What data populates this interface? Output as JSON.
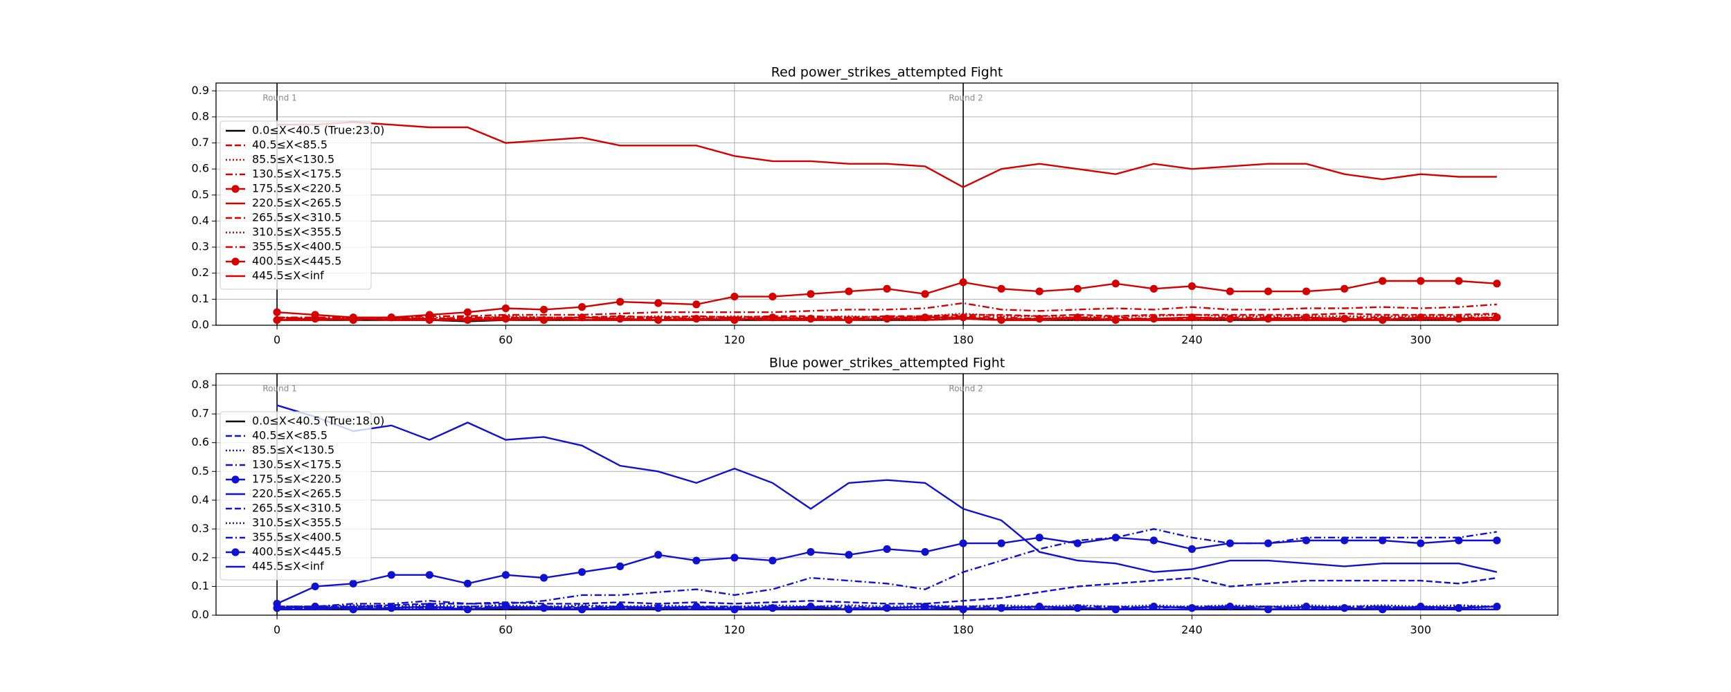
{
  "chart_data": [
    {
      "type": "line",
      "title": "Red power_strikes_attempted Fight",
      "x": [
        0,
        10,
        20,
        30,
        40,
        50,
        60,
        70,
        80,
        90,
        100,
        110,
        120,
        130,
        140,
        150,
        160,
        170,
        180,
        190,
        200,
        210,
        220,
        230,
        240,
        250,
        260,
        270,
        280,
        290,
        300,
        310,
        320
      ],
      "xlim": [
        -16,
        336
      ],
      "xticks": [
        0,
        60,
        120,
        180,
        240,
        300
      ],
      "ylim": [
        0,
        0.93
      ],
      "yticks": [
        {
          "value": 0,
          "label": "0.0"
        },
        0.1,
        0.2,
        0.3,
        0.4,
        0.5,
        0.6,
        0.7,
        0.8,
        0.9
      ],
      "grid": true,
      "legend": "upper left",
      "vlines": [
        {
          "x": 0,
          "label": "Round 1"
        },
        {
          "x": 180,
          "label": "Round 2"
        }
      ],
      "series": [
        {
          "name": "0.0≤X<40.5 (True:23.0)",
          "color": "#000000",
          "linestyle": "solid",
          "marker": false,
          "values": [
            0.02,
            0.02,
            0.02,
            0.02,
            0.02,
            0.015,
            0.02,
            0.02,
            0.02,
            0.02,
            0.02,
            0.02,
            0.02,
            0.02,
            0.02,
            0.02,
            0.02,
            0.02,
            0.025,
            0.02,
            0.02,
            0.02,
            0.02,
            0.02,
            0.02,
            0.02,
            0.02,
            0.02,
            0.02,
            0.02,
            0.02,
            0.02,
            0.02
          ]
        },
        {
          "name": "40.5≤X<85.5",
          "color": "#d40000",
          "linestyle": "dashed",
          "marker": false,
          "values": [
            0.025,
            0.02,
            0.025,
            0.025,
            0.02,
            0.025,
            0.025,
            0.025,
            0.02,
            0.025,
            0.025,
            0.025,
            0.025,
            0.02,
            0.025,
            0.025,
            0.025,
            0.025,
            0.03,
            0.025,
            0.025,
            0.025,
            0.025,
            0.025,
            0.025,
            0.025,
            0.025,
            0.025,
            0.025,
            0.025,
            0.025,
            0.025,
            0.025
          ]
        },
        {
          "name": "85.5≤X<130.5",
          "color": "#d40000",
          "linestyle": "dotted",
          "marker": false,
          "values": [
            0.02,
            0.02,
            0.025,
            0.02,
            0.02,
            0.02,
            0.025,
            0.02,
            0.02,
            0.025,
            0.02,
            0.02,
            0.025,
            0.02,
            0.02,
            0.025,
            0.02,
            0.02,
            0.03,
            0.02,
            0.025,
            0.02,
            0.02,
            0.025,
            0.02,
            0.02,
            0.025,
            0.02,
            0.02,
            0.025,
            0.02,
            0.02,
            0.025
          ]
        },
        {
          "name": "130.5≤X<175.5",
          "color": "#d40000",
          "linestyle": "dashdot",
          "marker": false,
          "values": [
            0.03,
            0.025,
            0.025,
            0.03,
            0.025,
            0.025,
            0.03,
            0.025,
            0.03,
            0.025,
            0.03,
            0.025,
            0.03,
            0.025,
            0.03,
            0.025,
            0.03,
            0.03,
            0.035,
            0.03,
            0.025,
            0.03,
            0.03,
            0.025,
            0.03,
            0.03,
            0.03,
            0.025,
            0.03,
            0.03,
            0.03,
            0.03,
            0.03
          ]
        },
        {
          "name": "175.5≤X<220.5",
          "color": "#d40000",
          "linestyle": "solid",
          "marker": true,
          "values": [
            0.02,
            0.025,
            0.02,
            0.03,
            0.02,
            0.02,
            0.025,
            0.02,
            0.03,
            0.025,
            0.02,
            0.025,
            0.02,
            0.03,
            0.025,
            0.02,
            0.025,
            0.03,
            0.03,
            0.02,
            0.025,
            0.03,
            0.02,
            0.025,
            0.03,
            0.025,
            0.025,
            0.03,
            0.025,
            0.02,
            0.03,
            0.025,
            0.03
          ]
        },
        {
          "name": "220.5≤X<265.5",
          "color": "#d40000",
          "linestyle": "solid",
          "marker": false,
          "values": [
            0.02,
            0.02,
            0.025,
            0.02,
            0.02,
            0.02,
            0.02,
            0.025,
            0.02,
            0.02,
            0.02,
            0.02,
            0.025,
            0.02,
            0.02,
            0.02,
            0.025,
            0.02,
            0.025,
            0.02,
            0.02,
            0.025,
            0.02,
            0.02,
            0.02,
            0.025,
            0.02,
            0.02,
            0.02,
            0.02,
            0.025,
            0.02,
            0.02
          ]
        },
        {
          "name": "265.5≤X<310.5",
          "color": "#d40000",
          "linestyle": "dashed",
          "marker": false,
          "values": [
            0.03,
            0.025,
            0.025,
            0.03,
            0.025,
            0.03,
            0.03,
            0.03,
            0.03,
            0.035,
            0.03,
            0.035,
            0.03,
            0.035,
            0.035,
            0.03,
            0.035,
            0.035,
            0.04,
            0.04,
            0.035,
            0.04,
            0.035,
            0.04,
            0.04,
            0.04,
            0.04,
            0.04,
            0.045,
            0.04,
            0.04,
            0.04,
            0.045
          ]
        },
        {
          "name": "310.5≤X<355.5",
          "color": "#d40000",
          "linestyle": "dotted",
          "marker": false,
          "values": [
            0.03,
            0.025,
            0.03,
            0.025,
            0.03,
            0.025,
            0.035,
            0.03,
            0.03,
            0.03,
            0.035,
            0.03,
            0.035,
            0.03,
            0.03,
            0.035,
            0.03,
            0.035,
            0.045,
            0.035,
            0.035,
            0.03,
            0.035,
            0.035,
            0.04,
            0.035,
            0.035,
            0.035,
            0.035,
            0.035,
            0.035,
            0.035,
            0.04
          ]
        },
        {
          "name": "355.5≤X<400.5",
          "color": "#d40000",
          "linestyle": "dashdot",
          "marker": false,
          "values": [
            0.03,
            0.03,
            0.03,
            0.03,
            0.035,
            0.035,
            0.04,
            0.04,
            0.04,
            0.045,
            0.05,
            0.05,
            0.05,
            0.05,
            0.055,
            0.06,
            0.06,
            0.065,
            0.085,
            0.06,
            0.055,
            0.06,
            0.065,
            0.06,
            0.07,
            0.06,
            0.06,
            0.065,
            0.065,
            0.07,
            0.065,
            0.07,
            0.08
          ]
        },
        {
          "name": "400.5≤X<445.5",
          "color": "#d40000",
          "linestyle": "solid",
          "marker": true,
          "values": [
            0.05,
            0.04,
            0.03,
            0.03,
            0.04,
            0.05,
            0.065,
            0.06,
            0.07,
            0.09,
            0.085,
            0.08,
            0.11,
            0.11,
            0.12,
            0.13,
            0.14,
            0.12,
            0.165,
            0.14,
            0.13,
            0.14,
            0.16,
            0.14,
            0.15,
            0.13,
            0.13,
            0.13,
            0.14,
            0.17,
            0.17,
            0.17,
            0.16
          ]
        },
        {
          "name": "445.5≤X<inf",
          "color": "#d40000",
          "linestyle": "solid",
          "marker": false,
          "values": [
            0.77,
            0.77,
            0.78,
            0.77,
            0.76,
            0.76,
            0.7,
            0.71,
            0.72,
            0.69,
            0.69,
            0.69,
            0.65,
            0.63,
            0.63,
            0.62,
            0.62,
            0.61,
            0.53,
            0.6,
            0.62,
            0.6,
            0.58,
            0.62,
            0.6,
            0.61,
            0.62,
            0.62,
            0.58,
            0.56,
            0.58,
            0.57,
            0.57
          ]
        }
      ]
    },
    {
      "type": "line",
      "title": "Blue power_strikes_attempted Fight",
      "x": [
        0,
        10,
        20,
        30,
        40,
        50,
        60,
        70,
        80,
        90,
        100,
        110,
        120,
        130,
        140,
        150,
        160,
        170,
        180,
        190,
        200,
        210,
        220,
        230,
        240,
        250,
        260,
        270,
        280,
        290,
        300,
        310,
        320
      ],
      "xlim": [
        -16,
        336
      ],
      "xticks": [
        0,
        60,
        120,
        180,
        240,
        300
      ],
      "ylim": [
        0,
        0.84
      ],
      "yticks": [
        {
          "value": 0,
          "label": "0.0"
        },
        0.1,
        0.2,
        0.3,
        0.4,
        0.5,
        0.6,
        0.7,
        0.8
      ],
      "grid": true,
      "legend": "upper left",
      "vlines": [
        {
          "x": 0,
          "label": "Round 1"
        },
        {
          "x": 180,
          "label": "Round 2"
        }
      ],
      "series": [
        {
          "name": "0.0≤X<40.5 (True:18.0)",
          "color": "#000000",
          "linestyle": "solid",
          "marker": false,
          "values": [
            0.02,
            0.02,
            0.02,
            0.02,
            0.02,
            0.02,
            0.02,
            0.02,
            0.02,
            0.02,
            0.02,
            0.02,
            0.02,
            0.02,
            0.02,
            0.02,
            0.02,
            0.02,
            0.02,
            0.02,
            0.02,
            0.02,
            0.02,
            0.02,
            0.02,
            0.02,
            0.02,
            0.02,
            0.02,
            0.02,
            0.02,
            0.02,
            0.02
          ]
        },
        {
          "name": "40.5≤X<85.5",
          "color": "#1010d0",
          "linestyle": "dashed",
          "marker": false,
          "values": [
            0.025,
            0.025,
            0.03,
            0.025,
            0.03,
            0.025,
            0.025,
            0.03,
            0.025,
            0.025,
            0.03,
            0.025,
            0.025,
            0.03,
            0.025,
            0.025,
            0.025,
            0.03,
            0.025,
            0.025,
            0.03,
            0.025,
            0.025,
            0.03,
            0.025,
            0.025,
            0.03,
            0.025,
            0.025,
            0.03,
            0.025,
            0.025,
            0.03
          ]
        },
        {
          "name": "85.5≤X<130.5",
          "color": "#1010d0",
          "linestyle": "dotted",
          "marker": false,
          "values": [
            0.02,
            0.025,
            0.02,
            0.02,
            0.025,
            0.02,
            0.025,
            0.02,
            0.02,
            0.025,
            0.02,
            0.02,
            0.025,
            0.02,
            0.025,
            0.02,
            0.02,
            0.025,
            0.02,
            0.025,
            0.02,
            0.02,
            0.025,
            0.02,
            0.02,
            0.025,
            0.02,
            0.02,
            0.025,
            0.02,
            0.02,
            0.025,
            0.02
          ]
        },
        {
          "name": "130.5≤X<175.5",
          "color": "#1010d0",
          "linestyle": "dashdot",
          "marker": false,
          "values": [
            0.03,
            0.025,
            0.03,
            0.03,
            0.025,
            0.03,
            0.03,
            0.025,
            0.03,
            0.03,
            0.025,
            0.03,
            0.03,
            0.025,
            0.03,
            0.03,
            0.025,
            0.03,
            0.03,
            0.03,
            0.025,
            0.03,
            0.03,
            0.025,
            0.03,
            0.03,
            0.03,
            0.025,
            0.03,
            0.03,
            0.025,
            0.03,
            0.03
          ]
        },
        {
          "name": "175.5≤X<220.5",
          "color": "#1010d0",
          "linestyle": "solid",
          "marker": true,
          "values": [
            0.025,
            0.03,
            0.02,
            0.025,
            0.03,
            0.02,
            0.03,
            0.025,
            0.02,
            0.03,
            0.025,
            0.03,
            0.02,
            0.025,
            0.03,
            0.02,
            0.025,
            0.03,
            0.02,
            0.025,
            0.03,
            0.025,
            0.02,
            0.03,
            0.025,
            0.03,
            0.02,
            0.03,
            0.025,
            0.02,
            0.03,
            0.025,
            0.03
          ]
        },
        {
          "name": "220.5≤X<265.5",
          "color": "#1010d0",
          "linestyle": "solid",
          "marker": false,
          "values": [
            0.02,
            0.02,
            0.025,
            0.02,
            0.02,
            0.02,
            0.025,
            0.02,
            0.02,
            0.02,
            0.025,
            0.02,
            0.02,
            0.02,
            0.025,
            0.02,
            0.02,
            0.02,
            0.025,
            0.02,
            0.02,
            0.025,
            0.02,
            0.02,
            0.02,
            0.025,
            0.02,
            0.02,
            0.02,
            0.025,
            0.02,
            0.02,
            0.02
          ]
        },
        {
          "name": "265.5≤X<310.5",
          "color": "#1010d0",
          "linestyle": "dashed",
          "marker": false,
          "values": [
            0.03,
            0.03,
            0.03,
            0.035,
            0.04,
            0.04,
            0.045,
            0.04,
            0.04,
            0.045,
            0.04,
            0.045,
            0.04,
            0.045,
            0.05,
            0.045,
            0.04,
            0.04,
            0.05,
            0.06,
            0.08,
            0.1,
            0.11,
            0.12,
            0.13,
            0.1,
            0.11,
            0.12,
            0.12,
            0.12,
            0.12,
            0.11,
            0.13
          ]
        },
        {
          "name": "310.5≤X<355.5",
          "color": "#1010d0",
          "linestyle": "dotted",
          "marker": false,
          "values": [
            0.03,
            0.03,
            0.035,
            0.03,
            0.035,
            0.03,
            0.035,
            0.03,
            0.035,
            0.03,
            0.035,
            0.03,
            0.03,
            0.035,
            0.03,
            0.035,
            0.03,
            0.035,
            0.03,
            0.035,
            0.03,
            0.035,
            0.03,
            0.035,
            0.03,
            0.035,
            0.03,
            0.035,
            0.03,
            0.035,
            0.03,
            0.035,
            0.03
          ]
        },
        {
          "name": "355.5≤X<400.5",
          "color": "#1010d0",
          "linestyle": "dashdot",
          "marker": false,
          "values": [
            0.03,
            0.03,
            0.04,
            0.04,
            0.05,
            0.04,
            0.04,
            0.05,
            0.07,
            0.07,
            0.08,
            0.09,
            0.07,
            0.09,
            0.13,
            0.12,
            0.11,
            0.09,
            0.15,
            0.19,
            0.23,
            0.26,
            0.27,
            0.3,
            0.27,
            0.25,
            0.25,
            0.27,
            0.27,
            0.27,
            0.27,
            0.27,
            0.29
          ]
        },
        {
          "name": "400.5≤X<445.5",
          "color": "#1010d0",
          "linestyle": "solid",
          "marker": true,
          "values": [
            0.04,
            0.1,
            0.11,
            0.14,
            0.14,
            0.11,
            0.14,
            0.13,
            0.15,
            0.17,
            0.21,
            0.19,
            0.2,
            0.19,
            0.22,
            0.21,
            0.23,
            0.22,
            0.25,
            0.25,
            0.27,
            0.25,
            0.27,
            0.26,
            0.23,
            0.25,
            0.25,
            0.26,
            0.26,
            0.26,
            0.25,
            0.26,
            0.26
          ]
        },
        {
          "name": "445.5≤X<inf",
          "color": "#1010d0",
          "linestyle": "solid",
          "marker": false,
          "values": [
            0.73,
            0.69,
            0.64,
            0.66,
            0.61,
            0.67,
            0.61,
            0.62,
            0.59,
            0.52,
            0.5,
            0.46,
            0.51,
            0.46,
            0.37,
            0.46,
            0.47,
            0.46,
            0.37,
            0.33,
            0.22,
            0.19,
            0.18,
            0.15,
            0.16,
            0.19,
            0.19,
            0.18,
            0.17,
            0.18,
            0.18,
            0.18,
            0.15
          ]
        }
      ]
    }
  ]
}
